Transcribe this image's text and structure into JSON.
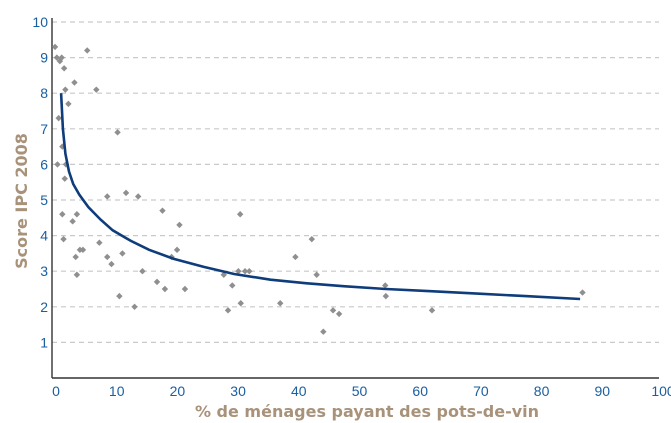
{
  "chart_data": {
    "type": "scatter",
    "xlabel": "% de ménages payant des pots-de-vin",
    "ylabel": "Score IPC 2008",
    "xlim": [
      0,
      100
    ],
    "ylim": [
      0,
      10
    ],
    "x_ticks": [
      0,
      10,
      20,
      30,
      40,
      50,
      60,
      70,
      80,
      90,
      100
    ],
    "y_ticks": [
      1,
      2,
      3,
      4,
      5,
      6,
      7,
      8,
      9,
      10
    ],
    "grid": "horizontal dashed",
    "points": [
      [
        0.5,
        9.3
      ],
      [
        0.8,
        9.0
      ],
      [
        1.3,
        8.9
      ],
      [
        1.6,
        9.0
      ],
      [
        2.0,
        8.7
      ],
      [
        1.1,
        7.3
      ],
      [
        0.9,
        6.0
      ],
      [
        1.7,
        6.5
      ],
      [
        2.2,
        8.1
      ],
      [
        2.7,
        7.7
      ],
      [
        2.1,
        5.6
      ],
      [
        2.3,
        6.0
      ],
      [
        1.7,
        4.6
      ],
      [
        1.9,
        3.9
      ],
      [
        3.4,
        4.4
      ],
      [
        4.1,
        4.6
      ],
      [
        3.7,
        8.3
      ],
      [
        4.6,
        3.6
      ],
      [
        3.9,
        3.4
      ],
      [
        4.1,
        2.9
      ],
      [
        5.1,
        3.6
      ],
      [
        5.8,
        9.2
      ],
      [
        7.3,
        8.1
      ],
      [
        7.8,
        3.8
      ],
      [
        9.1,
        5.1
      ],
      [
        9.1,
        3.4
      ],
      [
        9.8,
        3.2
      ],
      [
        10.8,
        6.9
      ],
      [
        11.1,
        2.3
      ],
      [
        11.6,
        3.5
      ],
      [
        12.2,
        5.2
      ],
      [
        13.6,
        2.0
      ],
      [
        14.2,
        5.1
      ],
      [
        14.9,
        3.0
      ],
      [
        17.3,
        2.7
      ],
      [
        18.2,
        4.7
      ],
      [
        18.6,
        2.5
      ],
      [
        19.7,
        3.4
      ],
      [
        20.6,
        3.6
      ],
      [
        21.0,
        4.3
      ],
      [
        21.9,
        2.5
      ],
      [
        28.3,
        2.9
      ],
      [
        29.0,
        1.9
      ],
      [
        29.7,
        2.6
      ],
      [
        30.7,
        3.0
      ],
      [
        31.0,
        4.6
      ],
      [
        31.1,
        2.1
      ],
      [
        31.8,
        3.0
      ],
      [
        32.5,
        3.0
      ],
      [
        37.6,
        2.1
      ],
      [
        40.1,
        3.4
      ],
      [
        42.8,
        3.9
      ],
      [
        43.6,
        2.9
      ],
      [
        44.7,
        1.3
      ],
      [
        46.3,
        1.9
      ],
      [
        47.3,
        1.8
      ],
      [
        54.9,
        2.6
      ],
      [
        55.0,
        2.3
      ],
      [
        62.6,
        1.9
      ],
      [
        87.4,
        2.4
      ]
    ],
    "trend_line": {
      "x": [
        1.5,
        1.8,
        2.2,
        2.8,
        3.5,
        4.5,
        6,
        8,
        10,
        13,
        16,
        20,
        25,
        30,
        36,
        42,
        48,
        55,
        62,
        70,
        78,
        87
      ],
      "y": [
        8.0,
        7.0,
        6.3,
        5.8,
        5.45,
        5.15,
        4.8,
        4.45,
        4.15,
        3.85,
        3.6,
        3.35,
        3.12,
        2.92,
        2.76,
        2.66,
        2.58,
        2.5,
        2.44,
        2.37,
        2.3,
        2.22
      ],
      "color": "#0f3c7a"
    },
    "point_color": "#8f8f8f",
    "tick_color": "#1a5fa0",
    "axis_title_color": "#a8927a"
  }
}
